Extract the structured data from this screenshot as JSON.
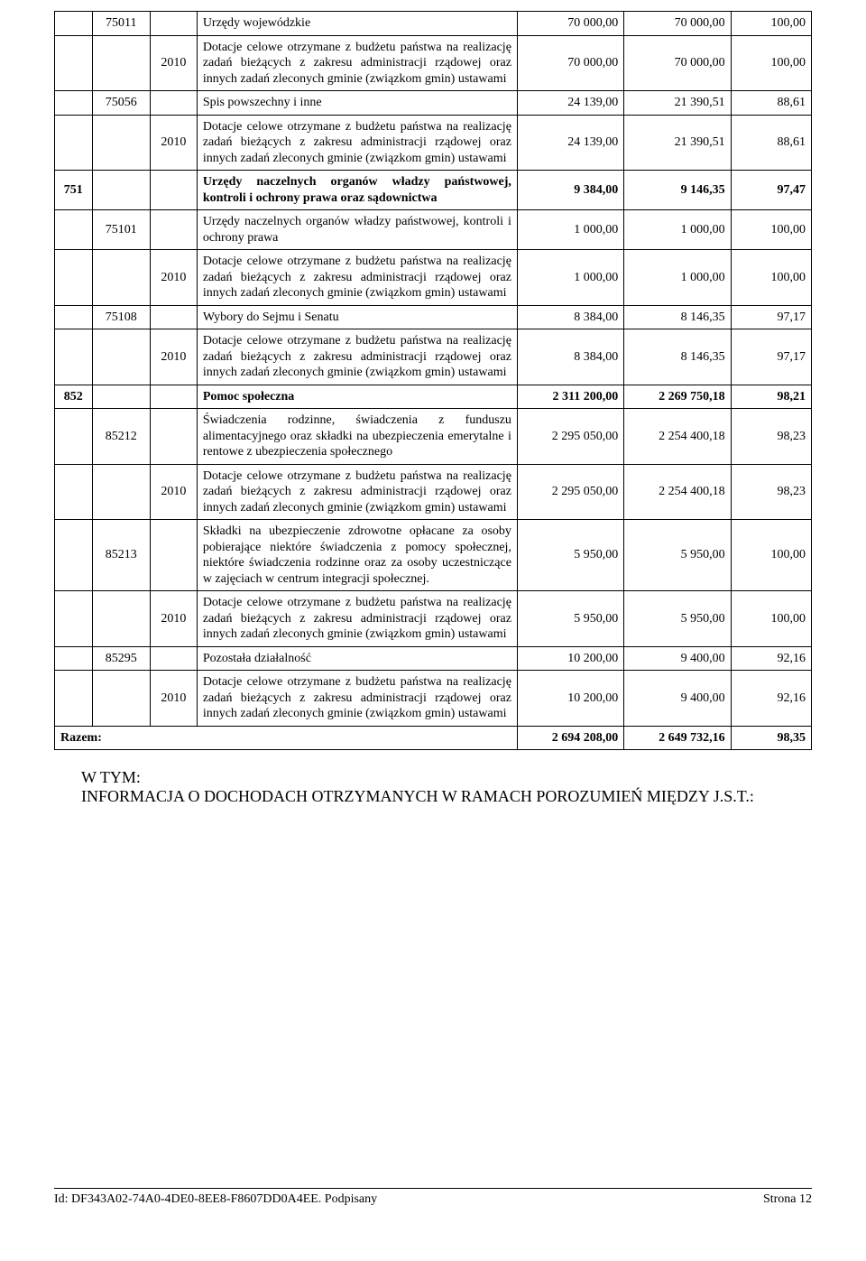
{
  "dotacje_text": "Dotacje celowe otrzymane z budżetu państwa na realizację zadań bieżących z zakresu administracji rządowej oraz innych zadań zleconych gminie (związkom gmin) ustawami",
  "rows": [
    {
      "a": "",
      "b": "75011",
      "c": "",
      "d": "Urzędy wojewódzkie",
      "e": "70 000,00",
      "f": "70 000,00",
      "g": "100,00"
    },
    {
      "a": "",
      "b": "",
      "c": "2010",
      "d_key": "dotacje",
      "e": "70 000,00",
      "f": "70 000,00",
      "g": "100,00"
    },
    {
      "a": "",
      "b": "75056",
      "c": "",
      "d": "Spis powszechny i inne",
      "e": "24 139,00",
      "f": "21 390,51",
      "g": "88,61"
    },
    {
      "a": "",
      "b": "",
      "c": "2010",
      "d_key": "dotacje",
      "e": "24 139,00",
      "f": "21 390,51",
      "g": "88,61"
    },
    {
      "a": "751",
      "b": "",
      "c": "",
      "d": "Urzędy naczelnych organów władzy państwowej, kontroli i ochrony prawa oraz sądownictwa",
      "e": "9 384,00",
      "f": "9 146,35",
      "g": "97,47",
      "bold": true
    },
    {
      "a": "",
      "b": "75101",
      "c": "",
      "d": "Urzędy naczelnych organów władzy państwowej, kontroli i ochrony prawa",
      "e": "1 000,00",
      "f": "1 000,00",
      "g": "100,00"
    },
    {
      "a": "",
      "b": "",
      "c": "2010",
      "d_key": "dotacje",
      "e": "1 000,00",
      "f": "1 000,00",
      "g": "100,00"
    },
    {
      "a": "",
      "b": "75108",
      "c": "",
      "d": "Wybory do Sejmu i Senatu",
      "e": "8 384,00",
      "f": "8 146,35",
      "g": "97,17"
    },
    {
      "a": "",
      "b": "",
      "c": "2010",
      "d_key": "dotacje",
      "e": "8 384,00",
      "f": "8 146,35",
      "g": "97,17"
    },
    {
      "a": "852",
      "b": "",
      "c": "",
      "d": "Pomoc społeczna",
      "e": "2 311 200,00",
      "f": "2 269 750,18",
      "g": "98,21",
      "bold": true
    },
    {
      "a": "",
      "b": "85212",
      "c": "",
      "d": "Świadczenia rodzinne, świadczenia z funduszu alimentacyjnego oraz składki na ubezpieczenia emerytalne i rentowe z ubezpieczenia społecznego",
      "e": "2 295 050,00",
      "f": "2 254 400,18",
      "g": "98,23"
    },
    {
      "a": "",
      "b": "",
      "c": "2010",
      "d_key": "dotacje",
      "e": "2 295 050,00",
      "f": "2 254 400,18",
      "g": "98,23"
    },
    {
      "a": "",
      "b": "85213",
      "c": "",
      "d": "Składki na ubezpieczenie zdrowotne opłacane za osoby pobierające niektóre świadczenia z pomocy społecznej, niektóre świadczenia rodzinne oraz za osoby uczestniczące w zajęciach w centrum integracji społecznej.",
      "e": "5 950,00",
      "f": "5 950,00",
      "g": "100,00"
    },
    {
      "a": "",
      "b": "",
      "c": "2010",
      "d_key": "dotacje",
      "e": "5 950,00",
      "f": "5 950,00",
      "g": "100,00"
    },
    {
      "a": "",
      "b": "85295",
      "c": "",
      "d": "Pozostała działalność",
      "e": "10 200,00",
      "f": "9 400,00",
      "g": "92,16"
    },
    {
      "a": "",
      "b": "",
      "c": "2010",
      "d_key": "dotacje",
      "e": "10 200,00",
      "f": "9 400,00",
      "g": "92,16"
    }
  ],
  "summary": {
    "label": "Razem:",
    "e": "2 694 208,00",
    "f": "2 649 732,16",
    "g": "98,35"
  },
  "footer_note1": "W TYM:",
  "footer_note2": "INFORMACJA O DOCHODACH OTRZYMANYCH W RAMACH POROZUMIEŃ MIĘDZY J.S.T.:",
  "doc_id": "Id: DF343A02-74A0-4DE0-8EE8-F8607DD0A4EE. Podpisany",
  "page_num": "Strona 12"
}
